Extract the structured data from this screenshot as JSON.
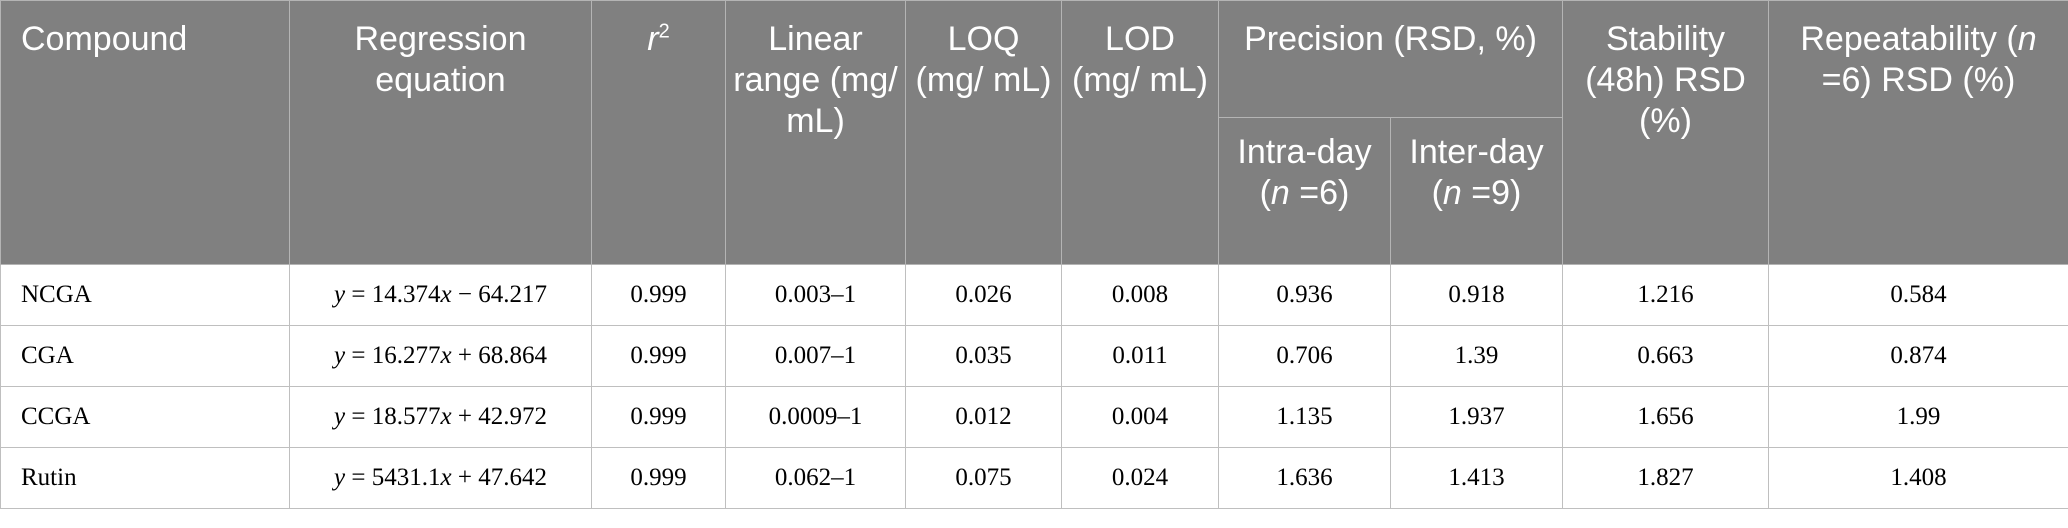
{
  "table": {
    "headers": {
      "compound": "Compound",
      "regression": "Regression equation",
      "r": "r",
      "r_sup": "2",
      "linear_range": "Linear range (mg/ mL)",
      "loq": "LOQ (mg/ mL)",
      "lod": "LOD (mg/ mL)",
      "precision": "Precision (RSD, %)",
      "intra_pre": "Intra-day (",
      "intra_n": "n",
      "intra_post": " =6)",
      "inter_pre": "Inter-day (",
      "inter_n": "n",
      "inter_post": " =9)",
      "stability": "Stability (48h) RSD (%)",
      "repeat_pre": "Repeatability (",
      "repeat_n": "n",
      "repeat_post": " =6) RSD (%)"
    },
    "rows": [
      {
        "compound": "NCGA",
        "eq_y": "y",
        "eq_mid": " = 14.374",
        "eq_x": "x",
        "eq_tail": " − 64.217",
        "r2": "0.999",
        "range": "0.003–1",
        "loq": "0.026",
        "lod": "0.008",
        "intra": "0.936",
        "inter": "0.918",
        "stability": "1.216",
        "repeat": "0.584"
      },
      {
        "compound": "CGA",
        "eq_y": "y",
        "eq_mid": " = 16.277",
        "eq_x": "x",
        "eq_tail": " + 68.864",
        "r2": "0.999",
        "range": "0.007–1",
        "loq": "0.035",
        "lod": "0.011",
        "intra": "0.706",
        "inter": "1.39",
        "stability": "0.663",
        "repeat": "0.874"
      },
      {
        "compound": "CCGA",
        "eq_y": "y",
        "eq_mid": " = 18.577",
        "eq_x": "x",
        "eq_tail": " + 42.972",
        "r2": "0.999",
        "range": "0.0009–1",
        "loq": "0.012",
        "lod": "0.004",
        "intra": "1.135",
        "inter": "1.937",
        "stability": "1.656",
        "repeat": "1.99"
      },
      {
        "compound": "Rutin",
        "eq_y": "y",
        "eq_mid": " = 5431.1",
        "eq_x": "x",
        "eq_tail": " + 47.642",
        "r2": "0.999",
        "range": "0.062–1",
        "loq": "0.075",
        "lod": "0.024",
        "intra": "1.636",
        "inter": "1.413",
        "stability": "1.827",
        "repeat": "1.408"
      }
    ]
  }
}
